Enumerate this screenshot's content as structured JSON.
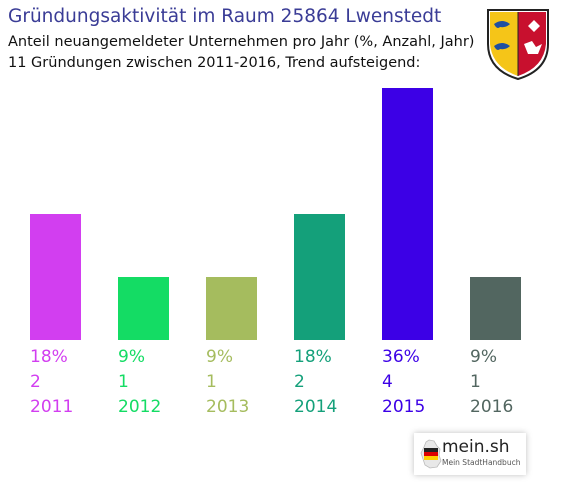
{
  "header": {
    "title": "Gründungsaktivität im Raum 25864 Lwenstedt",
    "subtitle_line1": "Anteil neuangemeldeter Unternehmen pro Jahr (%, Anzahl, Jahr)",
    "subtitle_line2": "11 Gründungen zwischen 2011-2016, Trend aufsteigend:"
  },
  "crest": {
    "icon": "schleswig-holstein-coat-of-arms-icon",
    "colors": {
      "left": "#f5c518",
      "right": "#c8102e",
      "lion": "#1f4fa0"
    }
  },
  "chart_data": {
    "type": "bar",
    "categories": [
      "2011",
      "2012",
      "2013",
      "2014",
      "2015",
      "2016"
    ],
    "percent_labels": [
      "18%",
      "9%",
      "9%",
      "18%",
      "36%",
      "9%"
    ],
    "percent": [
      18,
      9,
      9,
      18,
      36,
      9
    ],
    "counts": [
      2,
      1,
      1,
      2,
      4,
      1
    ],
    "colors": [
      "#d23ef0",
      "#14dc64",
      "#a5bc5e",
      "#14a07a",
      "#3c00e6",
      "#526660"
    ],
    "title": "Gründungsaktivität im Raum 25864 Lwenstedt",
    "xlabel": "",
    "ylabel": "",
    "grid": false,
    "legend": "none"
  },
  "logo": {
    "name": "mein.sh",
    "tagline": "Mein StadtHandbuch",
    "icon": "germany-map-icon"
  }
}
